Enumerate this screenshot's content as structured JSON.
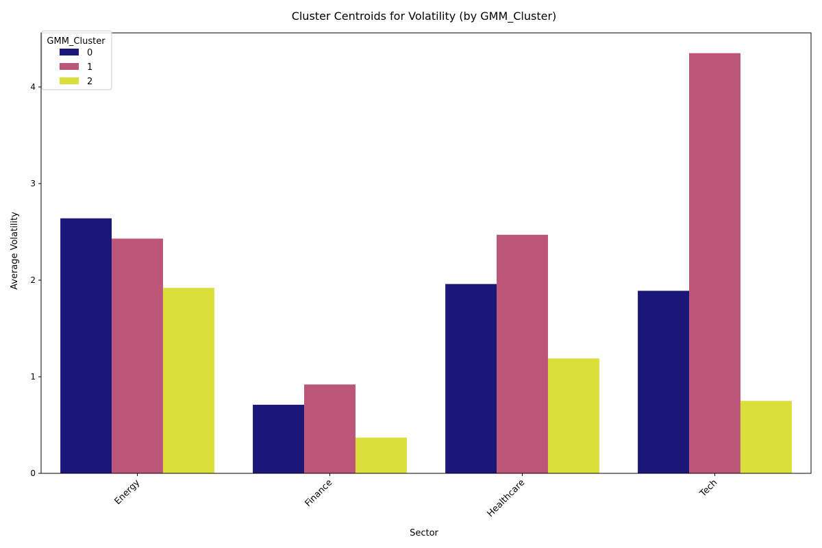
{
  "chart_data": {
    "type": "bar",
    "title": "Cluster Centroids for Volatility (by GMM_Cluster)",
    "xlabel": "Sector",
    "ylabel": "Average Volatility",
    "categories": [
      "Energy",
      "Finance",
      "Healthcare",
      "Tech"
    ],
    "ylim": [
      0,
      4.56
    ],
    "yticks": [
      0,
      1,
      2,
      3,
      4
    ],
    "grid": false,
    "legend": {
      "title": "GMM_Cluster",
      "placement": "top-left"
    },
    "series": [
      {
        "name": "0",
        "color": "#1a1778",
        "values": [
          2.64,
          0.71,
          1.96,
          1.89
        ]
      },
      {
        "name": "1",
        "color": "#bc5679",
        "values": [
          2.43,
          0.92,
          2.47,
          4.35
        ]
      },
      {
        "name": "2",
        "color": "#dadf3a",
        "values": [
          1.92,
          0.37,
          1.19,
          0.75
        ]
      }
    ]
  }
}
